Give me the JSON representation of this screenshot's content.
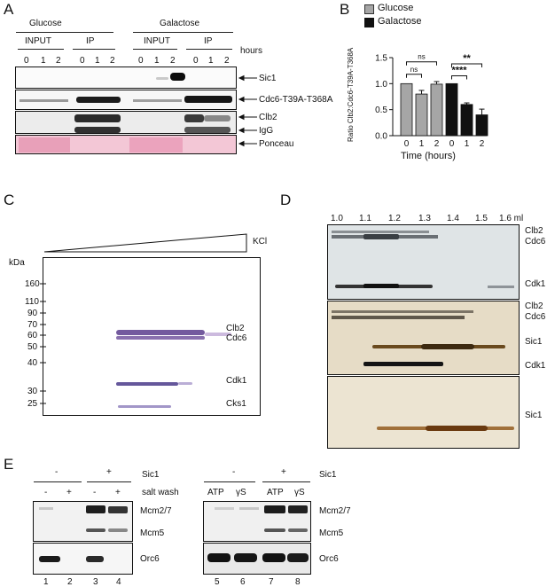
{
  "panelA": {
    "letter": "A",
    "conditions": [
      "Glucose",
      "Galactose"
    ],
    "groups": [
      "INPUT",
      "IP",
      "INPUT",
      "IP"
    ],
    "time_unit": "hours",
    "lanes": [
      "0",
      "1",
      "2",
      "0",
      "1",
      "2",
      "0",
      "1",
      "2",
      "0",
      "1",
      "2"
    ],
    "blots": [
      "Sic1",
      "Cdc6-T39A-T368A",
      "Clb2",
      "IgG",
      "Ponceau"
    ]
  },
  "panelB": {
    "letter": "B",
    "legend": [
      {
        "name": "Glucose",
        "color": "#a6a6a6"
      },
      {
        "name": "Galactose",
        "color": "#111111"
      }
    ],
    "sig": [
      "ns",
      "ns",
      "**",
      "****"
    ]
  },
  "chart_data": {
    "type": "bar",
    "ylabel": "Ratio Clb2:Cdc6-T39A-T368A",
    "xlabel": "Time (hours)",
    "ylim": [
      0,
      1.5
    ],
    "yticks": [
      "0.0",
      "0.5",
      "1.0",
      "1.5"
    ],
    "categories": [
      "0",
      "1",
      "2",
      "0",
      "1",
      "2"
    ],
    "series": [
      {
        "name": "Glucose",
        "color": "#a6a6a6",
        "values": [
          1.0,
          0.8,
          0.99,
          null,
          null,
          null
        ],
        "errors": [
          0,
          0.07,
          0.05,
          0,
          0,
          0
        ]
      },
      {
        "name": "Galactose",
        "color": "#111111",
        "values": [
          null,
          null,
          null,
          1.0,
          0.6,
          0.4
        ],
        "errors": [
          0,
          0,
          0,
          0,
          0.03,
          0.11
        ]
      }
    ]
  },
  "panelC": {
    "letter": "C",
    "gradient_label": "KCl",
    "unit": "kDa",
    "markers": [
      "160",
      "110",
      "90",
      "70",
      "60",
      "50",
      "40",
      "30",
      "25"
    ],
    "bands": [
      "Clb2",
      "Cdc6",
      "Cdk1",
      "Cks1"
    ]
  },
  "panelD": {
    "letter": "D",
    "fractions": [
      "1.0",
      "1.1",
      "1.2",
      "1.3",
      "1.4",
      "1.5",
      "1.6 ml"
    ],
    "blot1": [
      "Clb2",
      "Cdc6",
      "Cdk1"
    ],
    "blot2": [
      "Clb2",
      "Cdc6",
      "Sic1",
      "Cdk1"
    ],
    "blot3": [
      "Sic1"
    ]
  },
  "panelE": {
    "letter": "E",
    "left": {
      "sic1_signs": [
        "-",
        "+"
      ],
      "sic1_label": "Sic1",
      "wash_signs": [
        "-",
        "+",
        "-",
        "+"
      ],
      "wash_label": "salt wash",
      "lanes": [
        "1",
        "2",
        "3",
        "4"
      ]
    },
    "right": {
      "sic1_signs": [
        "-",
        "+"
      ],
      "sic1_label": "Sic1",
      "nucleotides": [
        "ATP",
        "γS",
        "ATP",
        "γS"
      ],
      "lanes": [
        "5",
        "6",
        "7",
        "8"
      ]
    },
    "bands": [
      "Mcm2/7",
      "Mcm5",
      "Orc6"
    ]
  }
}
